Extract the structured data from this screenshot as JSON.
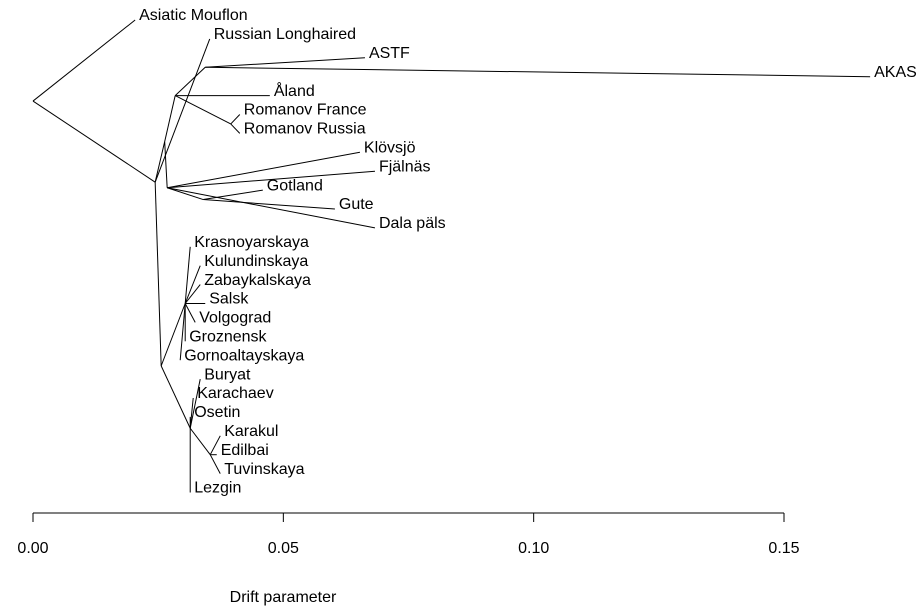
{
  "chart_data": {
    "type": "tree",
    "xlabel": "Drift parameter",
    "xlim": [
      0,
      0.15
    ],
    "xticks": [
      {
        "value": 0,
        "label": "0.00"
      },
      0.05,
      {
        "value": 0.1,
        "label": "0.10"
      },
      0.15
    ],
    "color": "#000000",
    "root": {
      "drift": 0,
      "children": [
        {
          "name": "Asiatic Mouflon",
          "drift": 0.0204
        },
        {
          "drift": 0.0244,
          "children": [
            {
              "name": "Russian Longhaired",
              "drift": 0.0353
            },
            {
              "drift": 0.0263,
              "children": [
                {
                  "drift": 0.0284,
                  "children": [
                    {
                      "drift": 0.0344,
                      "children": [
                        {
                          "name": "ASTF",
                          "drift": 0.0663
                        },
                        {
                          "name": "AKAS",
                          "drift": 0.1672
                        }
                      ]
                    },
                    {
                      "name": "Åland",
                      "drift": 0.0473
                    },
                    {
                      "drift": 0.0395,
                      "children": [
                        {
                          "name": "Romanov France",
                          "drift": 0.0413
                        },
                        {
                          "name": "Romanov Russia",
                          "drift": 0.0413
                        }
                      ]
                    }
                  ]
                },
                {
                  "drift": 0.0268,
                  "children": [
                    {
                      "name": "Klövsjö",
                      "drift": 0.0653
                    },
                    {
                      "name": "Fjälnäs",
                      "drift": 0.0683
                    },
                    {
                      "drift": 0.034,
                      "children": [
                        {
                          "name": "Gotland",
                          "drift": 0.0459
                        },
                        {
                          "name": "Gute",
                          "drift": 0.0603
                        }
                      ]
                    },
                    {
                      "name": "Dala päls",
                      "drift": 0.0683
                    }
                  ]
                }
              ]
            },
            {
              "drift": 0.0256,
              "children": [
                {
                  "drift": 0.0304,
                  "children": [
                    {
                      "name": "Krasnoyarskaya",
                      "drift": 0.0314
                    },
                    {
                      "name": "Kulundinskaya",
                      "drift": 0.0334
                    },
                    {
                      "name": "Zabaykalskaya",
                      "drift": 0.0334
                    },
                    {
                      "name": "Salsk",
                      "drift": 0.0344
                    },
                    {
                      "name": "Volgograd",
                      "drift": 0.0324
                    },
                    {
                      "name": "Groznensk",
                      "drift": 0.0304
                    },
                    {
                      "name": "Gornoaltayskaya",
                      "drift": 0.0294
                    }
                  ]
                },
                {
                  "drift": 0.0314,
                  "children": [
                    {
                      "name": "Buryat",
                      "drift": 0.0334
                    },
                    {
                      "name": "Karachaev",
                      "drift": 0.032
                    },
                    {
                      "name": "Osetin",
                      "drift": 0.0314
                    },
                    {
                      "drift": 0.0354,
                      "children": [
                        {
                          "name": "Karakul",
                          "drift": 0.0374
                        },
                        {
                          "name": "Edilbai",
                          "drift": 0.0367
                        },
                        {
                          "name": "Tuvinskaya",
                          "drift": 0.0374
                        }
                      ]
                    },
                    {
                      "name": "Lezgin",
                      "drift": 0.0314
                    }
                  ]
                }
              ]
            }
          ]
        }
      ]
    }
  }
}
